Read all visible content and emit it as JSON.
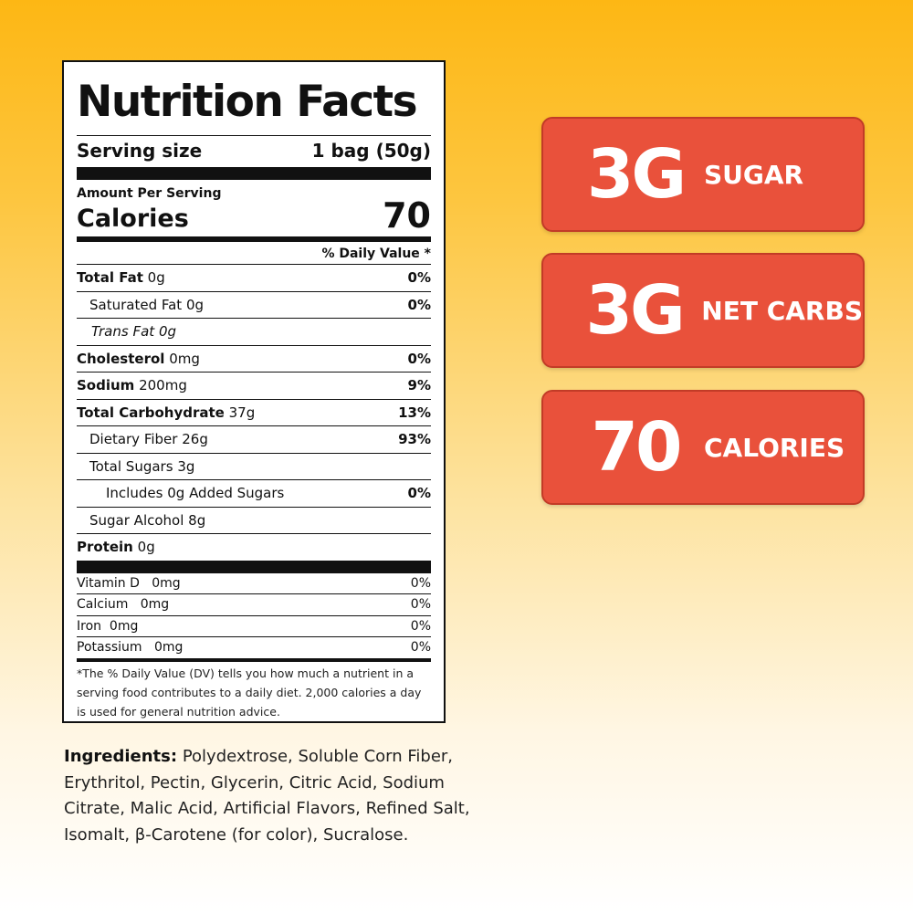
{
  "label": {
    "title": "Nutrition Facts",
    "serving_size_label": "Serving size",
    "serving_size_value": "1 bag (50g)",
    "amount_per_serving": "Amount Per Serving",
    "calories_label": "Calories",
    "calories_value": "70",
    "daily_value_header": "% Daily Value *",
    "nutrients": [
      {
        "name": "Total Fat",
        "amount": "0g",
        "dv": "0%"
      },
      {
        "name": "Saturated Fat",
        "amount": "0g",
        "dv": "0%"
      },
      {
        "name": "Trans Fat",
        "amount": "0g",
        "dv": ""
      },
      {
        "name": "Cholesterol",
        "amount": "0mg",
        "dv": "0%"
      },
      {
        "name": "Sodium",
        "amount": "200mg",
        "dv": "9%"
      },
      {
        "name": "Total Carbohydrate",
        "amount": "37g",
        "dv": "13%"
      },
      {
        "name": "Dietary Fiber",
        "amount": "26g",
        "dv": "93%"
      },
      {
        "name": "Total Sugars",
        "amount": "3g",
        "dv": ""
      },
      {
        "name": "Includes",
        "amount": "0g",
        "suffix": "Added Sugars",
        "dv": "0%"
      },
      {
        "name": "Sugar Alcohol",
        "amount": "8g",
        "dv": ""
      },
      {
        "name": "Protein",
        "amount": "0g",
        "dv": ""
      }
    ],
    "vitamins": [
      {
        "name": "Vitamin D",
        "amount": "0mg",
        "dv": "0%"
      },
      {
        "name": "Calcium",
        "amount": "0mg",
        "dv": "0%"
      },
      {
        "name": "Iron",
        "amount": "0mg",
        "dv": "0%"
      },
      {
        "name": "Potassium",
        "amount": "0mg",
        "dv": "0%"
      }
    ],
    "footnote": "*The % Daily Value (DV) tells you how much a nutrient in a serving food contributes to a daily diet. 2,000 calories a day is used for general nutrition advice."
  },
  "ingredients": {
    "label": "Ingredients:",
    "text": "Polydextrose, Soluble Corn Fiber, Erythritol, Pectin, Glycerin, Citric Acid, Sodium Citrate, Malic Acid, Artificial Flavors, Refined Salt, Isomalt, β-Carotene (for color), Sucralose."
  },
  "badges": [
    {
      "value": "3G",
      "label": "SUGAR"
    },
    {
      "value": "3G",
      "label": "NET CARBS"
    },
    {
      "value": "70",
      "label": "CALORIES"
    }
  ],
  "colors": {
    "badge_fill": "#e9513b",
    "background_top": "#fdb714",
    "background_bottom": "#ffffff"
  }
}
